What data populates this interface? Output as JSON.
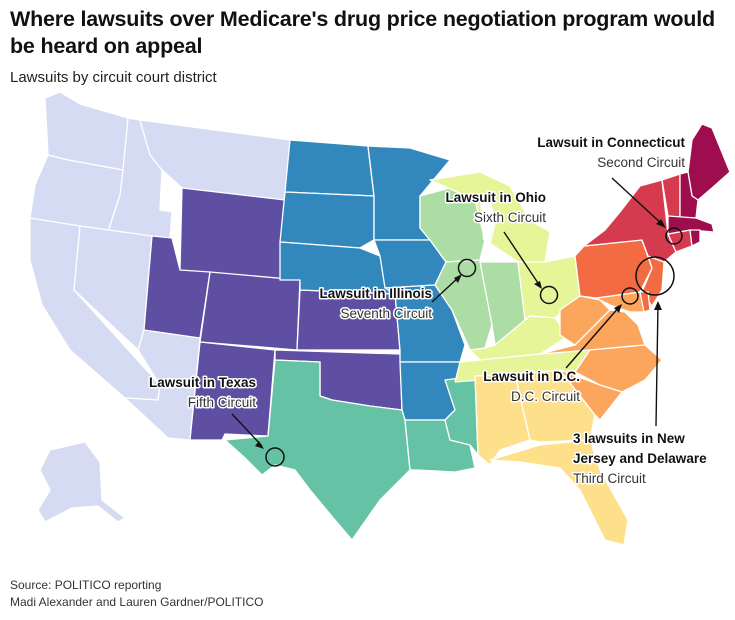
{
  "title": "Where lawsuits over Medicare's drug price negotiation program would be heard on appeal",
  "subtitle": "Lawsuits by circuit court district",
  "colors": {
    "first_circuit": "#9e0d4e",
    "second_circuit": "#d63a4f",
    "third_circuit": "#f26b43",
    "fourth_circuit": "#fca55d",
    "fifth_circuit": "#66c2a5",
    "sixth_circuit": "#e6f598",
    "seventh_circuit": "#abdda4",
    "eighth_circuit": "#3288bd",
    "ninth_circuit": "#d5dbf2",
    "tenth_circuit": "#5e4fa2",
    "eleventh_circuit": "#fee08b",
    "marker": "#111111"
  },
  "annotations": [
    {
      "id": "connecticut",
      "title": "Lawsuit in Connecticut",
      "circuit": "Second Circuit"
    },
    {
      "id": "ohio",
      "title": "Lawsuit in Ohio",
      "circuit": "Sixth Circuit"
    },
    {
      "id": "illinois",
      "title": "Lawsuit in Illinois",
      "circuit": "Seventh Circuit"
    },
    {
      "id": "texas",
      "title": "Lawsuit in Texas",
      "circuit": "Fifth Circuit"
    },
    {
      "id": "dc",
      "title": "Lawsuit in D.C.",
      "circuit": "D.C. Circuit"
    },
    {
      "id": "nj_de",
      "title_line1": "3 lawsuits in New",
      "title_line2": "Jersey and Delaware",
      "circuit": "Third Circuit"
    }
  ],
  "footer": {
    "source": "Source: POLITICO reporting",
    "credit": "Madi Alexander and Lauren Gardner/POLITICO"
  }
}
